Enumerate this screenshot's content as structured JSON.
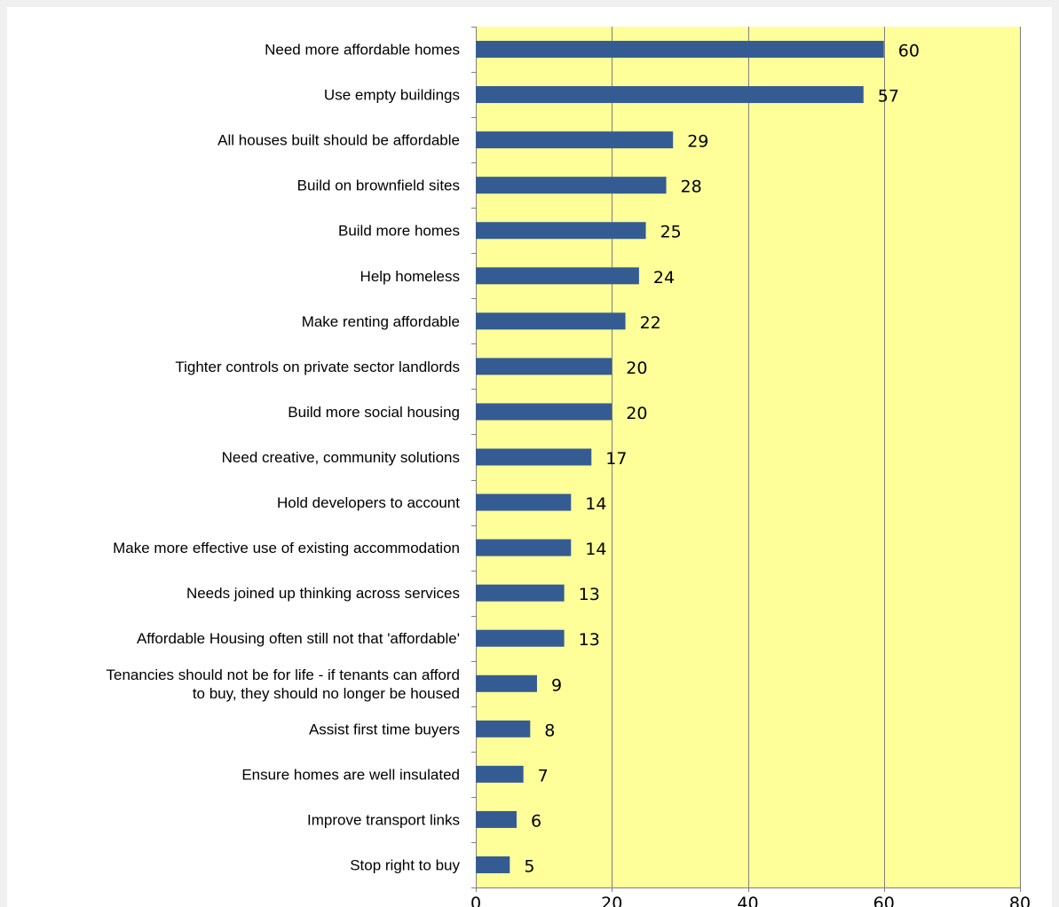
{
  "chart_data": {
    "type": "bar",
    "orientation": "horizontal",
    "title": "",
    "xlabel": "",
    "ylabel": "",
    "xlim": [
      0,
      80
    ],
    "x_ticks": [
      0,
      20,
      40,
      60,
      80
    ],
    "grid": "vertical",
    "legend": "none",
    "colors": {
      "bar": "#355C92",
      "plot_background": "#FFFF99",
      "gridline": "#808080",
      "panel_background": "#FFFFFF",
      "outer_background": "#F0F0F0"
    },
    "categories": [
      [
        "Need more affordable homes"
      ],
      [
        "Use empty buildings"
      ],
      [
        "All houses built should be affordable"
      ],
      [
        "Build on brownfield sites"
      ],
      [
        "Build more homes"
      ],
      [
        "Help homeless"
      ],
      [
        "Make renting affordable"
      ],
      [
        "Tighter controls on private sector landlords"
      ],
      [
        "Build more social housing"
      ],
      [
        "Need creative, community solutions"
      ],
      [
        "Hold developers to account"
      ],
      [
        "Make more effective use of existing accommodation"
      ],
      [
        "Needs joined up thinking across services"
      ],
      [
        "Affordable Housing often still not that 'affordable'"
      ],
      [
        "Tenancies should not be for life - if tenants can afford",
        "to buy, they should no longer be housed"
      ],
      [
        "Assist first time buyers"
      ],
      [
        "Ensure homes are well insulated"
      ],
      [
        "Improve transport links"
      ],
      [
        "Stop right to buy"
      ]
    ],
    "values": [
      60,
      57,
      29,
      28,
      25,
      24,
      22,
      20,
      20,
      17,
      14,
      14,
      13,
      13,
      9,
      8,
      7,
      6,
      5
    ]
  }
}
